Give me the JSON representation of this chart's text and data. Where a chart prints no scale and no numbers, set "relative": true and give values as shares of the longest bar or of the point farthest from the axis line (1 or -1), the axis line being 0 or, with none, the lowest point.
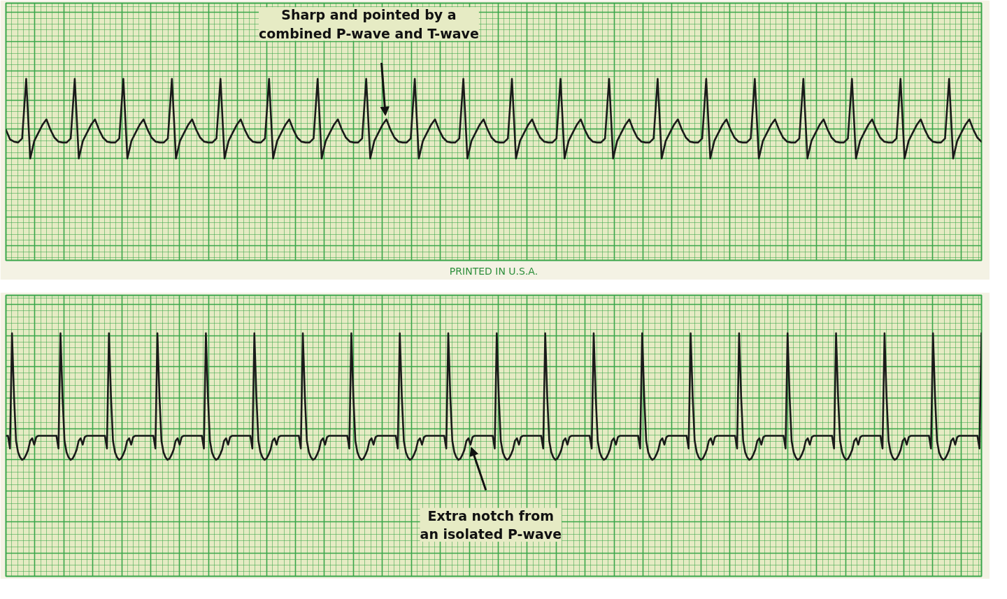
{
  "chart_data": [
    {
      "type": "line",
      "relative": true,
      "grid": true,
      "tick_labels": false,
      "annotations": [
        "Sharp and pointed by a combined P-wave and T-wave",
        "PRINTED IN U.S.A."
      ],
      "categories": [
        null,
        null,
        null,
        null,
        null,
        null,
        null,
        null,
        null,
        null,
        null,
        null,
        null,
        null,
        null,
        null,
        null,
        null,
        null,
        null,
        null,
        null,
        null,
        null,
        null,
        null,
        null,
        null,
        null,
        null,
        null,
        null,
        null,
        null,
        null,
        null,
        null,
        null,
        null,
        null,
        null,
        null,
        null,
        null,
        null,
        null,
        null,
        null,
        null,
        null,
        null,
        null,
        null,
        null,
        null,
        null,
        null,
        null,
        null,
        null,
        null,
        null,
        null,
        null,
        null,
        null,
        null,
        null,
        null,
        null,
        null,
        null,
        null,
        null,
        null,
        null,
        null,
        null,
        null,
        null,
        null,
        null,
        null,
        null,
        null,
        null,
        null,
        null,
        null,
        null,
        null,
        null,
        null,
        null,
        null,
        null,
        null,
        null,
        null,
        null,
        null,
        null,
        null,
        null,
        null,
        null,
        null,
        null,
        null,
        null,
        null,
        null,
        null,
        null,
        null,
        null,
        null,
        null,
        null,
        null,
        null,
        null,
        null,
        null,
        null,
        null,
        null,
        null,
        null,
        null,
        null,
        null,
        null,
        null,
        null,
        null,
        null,
        null,
        null,
        null,
        null,
        null,
        null,
        null,
        null,
        null,
        null,
        null,
        null,
        null,
        null,
        null,
        null,
        null,
        null,
        null,
        null,
        null,
        null,
        null,
        null,
        null,
        null,
        null,
        null,
        null,
        null,
        null,
        null,
        null,
        null,
        null,
        null,
        null,
        null,
        null,
        null,
        null,
        null,
        null,
        null,
        null,
        null,
        null,
        null,
        null,
        null,
        null,
        null,
        null,
        null,
        null,
        null,
        null,
        null,
        null,
        null,
        null,
        null,
        null,
        null,
        null,
        null,
        null,
        null,
        null,
        null,
        null,
        null,
        null,
        null,
        null,
        null,
        null,
        null,
        null,
        null,
        null,
        null,
        null,
        null,
        null,
        null,
        null,
        null,
        null,
        null,
        null,
        null,
        null,
        null,
        null,
        null,
        null,
        null,
        null,
        null,
        null,
        null,
        null,
        null,
        null
      ],
      "series": [
        {
          "color": "#1a1a1a",
          "values": [
            0.36,
            0.24,
            0.21,
            0.2,
            0.25,
            1,
            0,
            0.22,
            0.32,
            0.42,
            0.49,
            0.36,
            0.26,
            0.21,
            0.2,
            0.2,
            0.25,
            1,
            0,
            0.22,
            0.32,
            0.42,
            0.49,
            0.36,
            0.26,
            0.21,
            0.2,
            0.2,
            0.25,
            1,
            0,
            0.22,
            0.32,
            0.42,
            0.49,
            0.36,
            0.26,
            0.21,
            0.2,
            0.2,
            0.25,
            1,
            0,
            0.22,
            0.32,
            0.42,
            0.49,
            0.36,
            0.26,
            0.21,
            0.2,
            0.2,
            0.25,
            1,
            0,
            0.22,
            0.32,
            0.42,
            0.49,
            0.36,
            0.26,
            0.21,
            0.2,
            0.2,
            0.25,
            1,
            0,
            0.22,
            0.32,
            0.42,
            0.49,
            0.36,
            0.26,
            0.21,
            0.2,
            0.2,
            0.25,
            1,
            0,
            0.22,
            0.32,
            0.42,
            0.49,
            0.36,
            0.26,
            0.21,
            0.2,
            0.2,
            0.25,
            1,
            0,
            0.22,
            0.32,
            0.42,
            0.49,
            0.36,
            0.26,
            0.21,
            0.2,
            0.2,
            0.25,
            1,
            0,
            0.22,
            0.32,
            0.42,
            0.49,
            0.36,
            0.26,
            0.21,
            0.2,
            0.2,
            0.25,
            1,
            0,
            0.22,
            0.32,
            0.42,
            0.49,
            0.36,
            0.26,
            0.21,
            0.2,
            0.2,
            0.25,
            1,
            0,
            0.22,
            0.32,
            0.42,
            0.49,
            0.36,
            0.26,
            0.21,
            0.2,
            0.2,
            0.25,
            1,
            0,
            0.22,
            0.32,
            0.42,
            0.49,
            0.36,
            0.26,
            0.21,
            0.2,
            0.2,
            0.25,
            1,
            0,
            0.22,
            0.32,
            0.42,
            0.49,
            0.36,
            0.26,
            0.21,
            0.2,
            0.2,
            0.25,
            1,
            0,
            0.22,
            0.32,
            0.42,
            0.49,
            0.36,
            0.26,
            0.21,
            0.2,
            0.2,
            0.25,
            1,
            0,
            0.22,
            0.32,
            0.42,
            0.49,
            0.36,
            0.26,
            0.21,
            0.2,
            0.2,
            0.25,
            1,
            0,
            0.22,
            0.32,
            0.42,
            0.49,
            0.36,
            0.26,
            0.21,
            0.2,
            0.2,
            0.25,
            1,
            0,
            0.22,
            0.32,
            0.42,
            0.49,
            0.36,
            0.26,
            0.21,
            0.2,
            0.2,
            0.25,
            1,
            0,
            0.22,
            0.32,
            0.42,
            0.49,
            0.36,
            0.26,
            0.21,
            0.2,
            0.2,
            0.25,
            1,
            0,
            0.22,
            0.32,
            0.42,
            0.49,
            0.36,
            0.26,
            0.21,
            0.2,
            0.2,
            0.25,
            1,
            0,
            0.22,
            0.32,
            0.42,
            0.49,
            0.36,
            0.26,
            0.21
          ]
        }
      ]
    },
    {
      "type": "line",
      "relative": true,
      "grid": true,
      "tick_labels": false,
      "annotations": [
        "Extra notch from an isolated P-wave"
      ],
      "categories": [
        null,
        null,
        null,
        null,
        null,
        null,
        null,
        null,
        null,
        null,
        null,
        null,
        null,
        null,
        null,
        null,
        null,
        null,
        null,
        null,
        null,
        null,
        null,
        null,
        null,
        null,
        null,
        null,
        null,
        null,
        null,
        null,
        null,
        null,
        null,
        null,
        null,
        null,
        null,
        null,
        null,
        null,
        null,
        null,
        null,
        null,
        null,
        null,
        null,
        null,
        null,
        null,
        null,
        null,
        null,
        null,
        null,
        null,
        null,
        null,
        null,
        null,
        null,
        null,
        null,
        null,
        null,
        null,
        null,
        null,
        null,
        null,
        null,
        null,
        null,
        null,
        null,
        null,
        null,
        null,
        null,
        null,
        null,
        null,
        null,
        null,
        null,
        null,
        null,
        null,
        null,
        null,
        null,
        null,
        null,
        null,
        null,
        null,
        null,
        null,
        null,
        null,
        null,
        null,
        null,
        null,
        null,
        null,
        null,
        null,
        null,
        null,
        null,
        null,
        null,
        null,
        null,
        null,
        null,
        null,
        null,
        null,
        null,
        null,
        null,
        null,
        null,
        null,
        null,
        null,
        null,
        null,
        null,
        null,
        null,
        null,
        null,
        null,
        null,
        null,
        null,
        null,
        null,
        null,
        null,
        null,
        null,
        null,
        null,
        null,
        null,
        null,
        null,
        null,
        null,
        null,
        null,
        null,
        null,
        null,
        null,
        null,
        null,
        null,
        null,
        null,
        null,
        null,
        null,
        null,
        null,
        null,
        null,
        null,
        null,
        null,
        null,
        null,
        null,
        null,
        null,
        null,
        null,
        null,
        null,
        null,
        null,
        null,
        null,
        null,
        null,
        null,
        null,
        null,
        null,
        null,
        null,
        null,
        null,
        null,
        null,
        null,
        null,
        null,
        null,
        null,
        null,
        null,
        null,
        null,
        null,
        null,
        null,
        null,
        null,
        null,
        null,
        null,
        null,
        null,
        null,
        null,
        null,
        null,
        null,
        null,
        null,
        null,
        null,
        null,
        null,
        null,
        null,
        null,
        null,
        null,
        null,
        null,
        null,
        null,
        null,
        null,
        null,
        null,
        null,
        null,
        null,
        null,
        null,
        null,
        null,
        null,
        null,
        null,
        null,
        null,
        null,
        null,
        null,
        null,
        null,
        null,
        null,
        null,
        null,
        null,
        null,
        null,
        null,
        null,
        null,
        null,
        null,
        null,
        null,
        null,
        null,
        null,
        null,
        null,
        null,
        null,
        null,
        null,
        null,
        null,
        null,
        null,
        null,
        null,
        null,
        null,
        null,
        null,
        null,
        null,
        null,
        null,
        null,
        null,
        null,
        null,
        null,
        null,
        null,
        null,
        null,
        null,
        null,
        null,
        null,
        null,
        null,
        null,
        null,
        null,
        null,
        null,
        null,
        null,
        null,
        null,
        null,
        null,
        null,
        null,
        null,
        null,
        null,
        null,
        null,
        null,
        null,
        null,
        null,
        null,
        null,
        null,
        null,
        null,
        null,
        null,
        null,
        null,
        null,
        null,
        null,
        null,
        null,
        null,
        null,
        null,
        null,
        null,
        null,
        null,
        null,
        null,
        null,
        null,
        null,
        null,
        null,
        null,
        null,
        null,
        null,
        null,
        null,
        null,
        null,
        null,
        null,
        null,
        null,
        null,
        null,
        null,
        null,
        null,
        null,
        null,
        null,
        null,
        null,
        null,
        null,
        null,
        null,
        null,
        null,
        null,
        null,
        null,
        null,
        null,
        null,
        null,
        null,
        null,
        null,
        null,
        null,
        null,
        null,
        null,
        null,
        null,
        null,
        null,
        null,
        null,
        null,
        null,
        null,
        null,
        null,
        null,
        null,
        null,
        null,
        null,
        null,
        null,
        null,
        null,
        null,
        null,
        null,
        null,
        null,
        null,
        null,
        null,
        null,
        null,
        null,
        null,
        null,
        null,
        null,
        null,
        null,
        null,
        null,
        null,
        null,
        null,
        null,
        null,
        null,
        null,
        null,
        null,
        null,
        null,
        null,
        null,
        null,
        null,
        null,
        null,
        null,
        null,
        null,
        null,
        null,
        null,
        null,
        null,
        null,
        null,
        null,
        null,
        null,
        null,
        null,
        null,
        null,
        null,
        null,
        null,
        null,
        null
      ],
      "series": [
        {
          "color": "#1a1a1a",
          "values": [
            0.19,
            0.19,
            0.09,
            1,
            0.5,
            0.15,
            0.06,
            0.02,
            0,
            0.01,
            0.04,
            0.08,
            0.15,
            0.17,
            0.12,
            0.18,
            0.19,
            0.19,
            0.19,
            0.19,
            0.19,
            0.19,
            0.19,
            0.19,
            0.19,
            0.19,
            0.09,
            1,
            0.5,
            0.15,
            0.06,
            0.02,
            0,
            0.01,
            0.04,
            0.08,
            0.15,
            0.17,
            0.12,
            0.18,
            0.19,
            0.19,
            0.19,
            0.19,
            0.19,
            0.19,
            0.19,
            0.19,
            0.19,
            0.19,
            0.09,
            1,
            0.5,
            0.15,
            0.06,
            0.02,
            0,
            0.01,
            0.04,
            0.08,
            0.15,
            0.17,
            0.12,
            0.18,
            0.19,
            0.19,
            0.19,
            0.19,
            0.19,
            0.19,
            0.19,
            0.19,
            0.19,
            0.19,
            0.09,
            1,
            0.5,
            0.15,
            0.06,
            0.02,
            0,
            0.01,
            0.04,
            0.08,
            0.15,
            0.17,
            0.12,
            0.18,
            0.19,
            0.19,
            0.19,
            0.19,
            0.19,
            0.19,
            0.19,
            0.19,
            0.19,
            0.19,
            0.09,
            1,
            0.5,
            0.15,
            0.06,
            0.02,
            0,
            0.01,
            0.04,
            0.08,
            0.15,
            0.17,
            0.12,
            0.18,
            0.19,
            0.19,
            0.19,
            0.19,
            0.19,
            0.19,
            0.19,
            0.19,
            0.19,
            0.19,
            0.09,
            1,
            0.5,
            0.15,
            0.06,
            0.02,
            0,
            0.01,
            0.04,
            0.08,
            0.15,
            0.17,
            0.12,
            0.18,
            0.19,
            0.19,
            0.19,
            0.19,
            0.19,
            0.19,
            0.19,
            0.19,
            0.19,
            0.19,
            0.09,
            1,
            0.5,
            0.15,
            0.06,
            0.02,
            0,
            0.01,
            0.04,
            0.08,
            0.15,
            0.17,
            0.12,
            0.18,
            0.19,
            0.19,
            0.19,
            0.19,
            0.19,
            0.19,
            0.19,
            0.19,
            0.19,
            0.19,
            0.09,
            1,
            0.5,
            0.15,
            0.06,
            0.02,
            0,
            0.01,
            0.04,
            0.08,
            0.15,
            0.17,
            0.12,
            0.18,
            0.19,
            0.19,
            0.19,
            0.19,
            0.19,
            0.19,
            0.19,
            0.19,
            0.19,
            0.19,
            0.09,
            1,
            0.5,
            0.15,
            0.06,
            0.02,
            0,
            0.01,
            0.04,
            0.08,
            0.15,
            0.17,
            0.12,
            0.18,
            0.19,
            0.19,
            0.19,
            0.19,
            0.19,
            0.19,
            0.19,
            0.19,
            0.19,
            0.19,
            0.09,
            1,
            0.5,
            0.15,
            0.06,
            0.02,
            0,
            0.01,
            0.04,
            0.08,
            0.15,
            0.17,
            0.12,
            0.18,
            0.19,
            0.19,
            0.19,
            0.19,
            0.19,
            0.19,
            0.19,
            0.19,
            0.19,
            0.19,
            0.09,
            1,
            0.5,
            0.15,
            0.06,
            0.02,
            0,
            0.01,
            0.04,
            0.08,
            0.15,
            0.17,
            0.12,
            0.18,
            0.19,
            0.19,
            0.19,
            0.19,
            0.19,
            0.19,
            0.19,
            0.19,
            0.19,
            0.19,
            0.09,
            1,
            0.5,
            0.15,
            0.06,
            0.02,
            0,
            0.01,
            0.04,
            0.08,
            0.15,
            0.17,
            0.12,
            0.18,
            0.19,
            0.19,
            0.19,
            0.19,
            0.19,
            0.19,
            0.19,
            0.19,
            0.19,
            0.19,
            0.09,
            1,
            0.5,
            0.15,
            0.06,
            0.02,
            0,
            0.01,
            0.04,
            0.08,
            0.15,
            0.17,
            0.12,
            0.18,
            0.19,
            0.19,
            0.19,
            0.19,
            0.19,
            0.19,
            0.19,
            0.19,
            0.19,
            0.19,
            0.09,
            1,
            0.5,
            0.15,
            0.06,
            0.02,
            0,
            0.01,
            0.04,
            0.08,
            0.15,
            0.17,
            0.12,
            0.18,
            0.19,
            0.19,
            0.19,
            0.19,
            0.19,
            0.19,
            0.19,
            0.19,
            0.19,
            0.19,
            0.09,
            1,
            0.5,
            0.15,
            0.06,
            0.02,
            0,
            0.01,
            0.04,
            0.08,
            0.15,
            0.17,
            0.12,
            0.18,
            0.19,
            0.19,
            0.19,
            0.19,
            0.19,
            0.19,
            0.19,
            0.19,
            0.19,
            0.19,
            0.09,
            1,
            0.5,
            0.15,
            0.06,
            0.02,
            0,
            0.01,
            0.04,
            0.08,
            0.15,
            0.17,
            0.12,
            0.18,
            0.19,
            0.19,
            0.19,
            0.19,
            0.19,
            0.19,
            0.19,
            0.19,
            0.19,
            0.19,
            0.09,
            1,
            0.5,
            0.15,
            0.06,
            0.02,
            0,
            0.01,
            0.04,
            0.08,
            0.15,
            0.17,
            0.12,
            0.18,
            0.19,
            0.19,
            0.19,
            0.19,
            0.19,
            0.19,
            0.19,
            0.19,
            0.19,
            0.19,
            0.09,
            1,
            0.5,
            0.15,
            0.06,
            0.02,
            0,
            0.01,
            0.04,
            0.08,
            0.15,
            0.17,
            0.12,
            0.18,
            0.19,
            0.19,
            0.19,
            0.19,
            0.19,
            0.19,
            0.19,
            0.19,
            0.19,
            0.19,
            0.09,
            1,
            0.5,
            0.15,
            0.06,
            0.02,
            0,
            0.01,
            0.04,
            0.08,
            0.15,
            0.17,
            0.12,
            0.18,
            0.19,
            0.19,
            0.19,
            0.19,
            0.19,
            0.19,
            0.19,
            0.19,
            0.19,
            0.19,
            0.09,
            1,
            0.5,
            0.15,
            0.06,
            0.02,
            0,
            0.01,
            0.04,
            0.08,
            0.15,
            0.17,
            0.12,
            0.18,
            0.19,
            0.19,
            0.19,
            0.19,
            0.19,
            0.19,
            0.19,
            0.19,
            0.19,
            0.19,
            0.09,
            1
          ]
        }
      ]
    }
  ]
}
